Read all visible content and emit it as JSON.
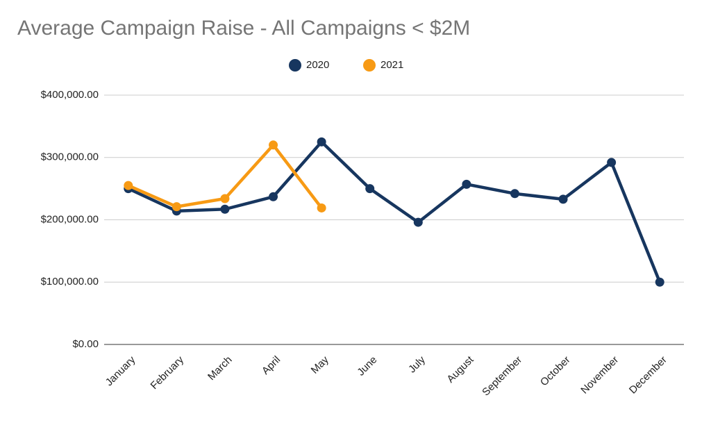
{
  "chart_data": {
    "type": "line",
    "title": "Average Campaign Raise - All Campaigns < $2M",
    "categories": [
      "January",
      "February",
      "March",
      "April",
      "May",
      "June",
      "July",
      "August",
      "September",
      "October",
      "November",
      "December"
    ],
    "series": [
      {
        "name": "2020",
        "color": "#17365f",
        "values": [
          250000,
          214000,
          217000,
          237000,
          325000,
          250000,
          196000,
          257000,
          242000,
          233000,
          292000,
          100000
        ]
      },
      {
        "name": "2021",
        "color": "#f79a14",
        "values": [
          255000,
          221000,
          234000,
          320000,
          219000,
          null,
          null,
          null,
          null,
          null,
          null,
          null
        ]
      }
    ],
    "ylim": [
      0,
      400000
    ],
    "yticks": [
      {
        "value": 0,
        "label": "$0.00"
      },
      {
        "value": 100000,
        "label": "$100,000.00"
      },
      {
        "value": 200000,
        "label": "$200,000.00"
      },
      {
        "value": 300000,
        "label": "$300,000.00"
      },
      {
        "value": 400000,
        "label": "$400,000.00"
      }
    ],
    "grid": true,
    "legend": "top"
  }
}
